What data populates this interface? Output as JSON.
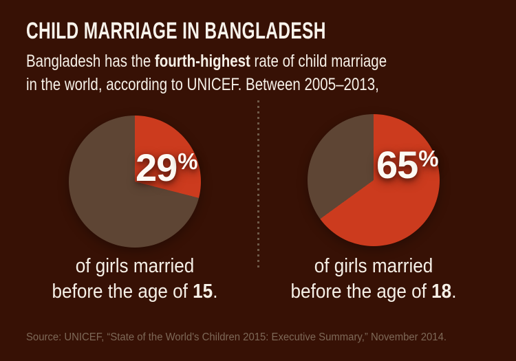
{
  "title": "CHILD MARRIAGE IN BANGLADESH",
  "subtitle": {
    "line1_pre": "Bangladesh has the ",
    "line1_bold": "fourth-highest",
    "line1_post": " rate of child marriage",
    "line2": "in the world, according to UNICEF. Between 2005–2013,"
  },
  "chart_data": [
    {
      "type": "pie",
      "title": "of girls married before the age of 15.",
      "labels": [
        "married before age 15",
        "not married before age 15"
      ],
      "values": [
        29,
        71
      ],
      "colors": [
        "#cc3b1e",
        "#5e4534"
      ],
      "value_label": "29%",
      "start_angle_deg": 0,
      "direction": "clockwise",
      "legend": "none"
    },
    {
      "type": "pie",
      "title": "of girls married before the age of 18.",
      "labels": [
        "married before age 18",
        "not married before age 18"
      ],
      "values": [
        65,
        35
      ],
      "colors": [
        "#cc3b1e",
        "#5e4534"
      ],
      "value_label": "65%",
      "start_angle_deg": 0,
      "direction": "clockwise",
      "legend": "none"
    }
  ],
  "panels": [
    {
      "percent_value": "29",
      "percent_sign": "%",
      "caption_line1": "of girls married",
      "caption_line2_pre": "before the age of ",
      "caption_line2_bold": "15",
      "caption_line2_end": "."
    },
    {
      "percent_value": "65",
      "percent_sign": "%",
      "caption_line1": "of girls married",
      "caption_line2_pre": "before the age of ",
      "caption_line2_bold": "18",
      "caption_line2_end": "."
    }
  ],
  "source": "Source: UNICEF, “State of the World's Children 2015: Executive Summary,” November 2014.",
  "colors": {
    "background": "#371105",
    "slice_highlight": "#cc3b1e",
    "slice_remainder": "#5e4534",
    "heading_text": "#f8f3ec",
    "source_text": "#7d6857",
    "divider_dots": "#6e5a49"
  }
}
